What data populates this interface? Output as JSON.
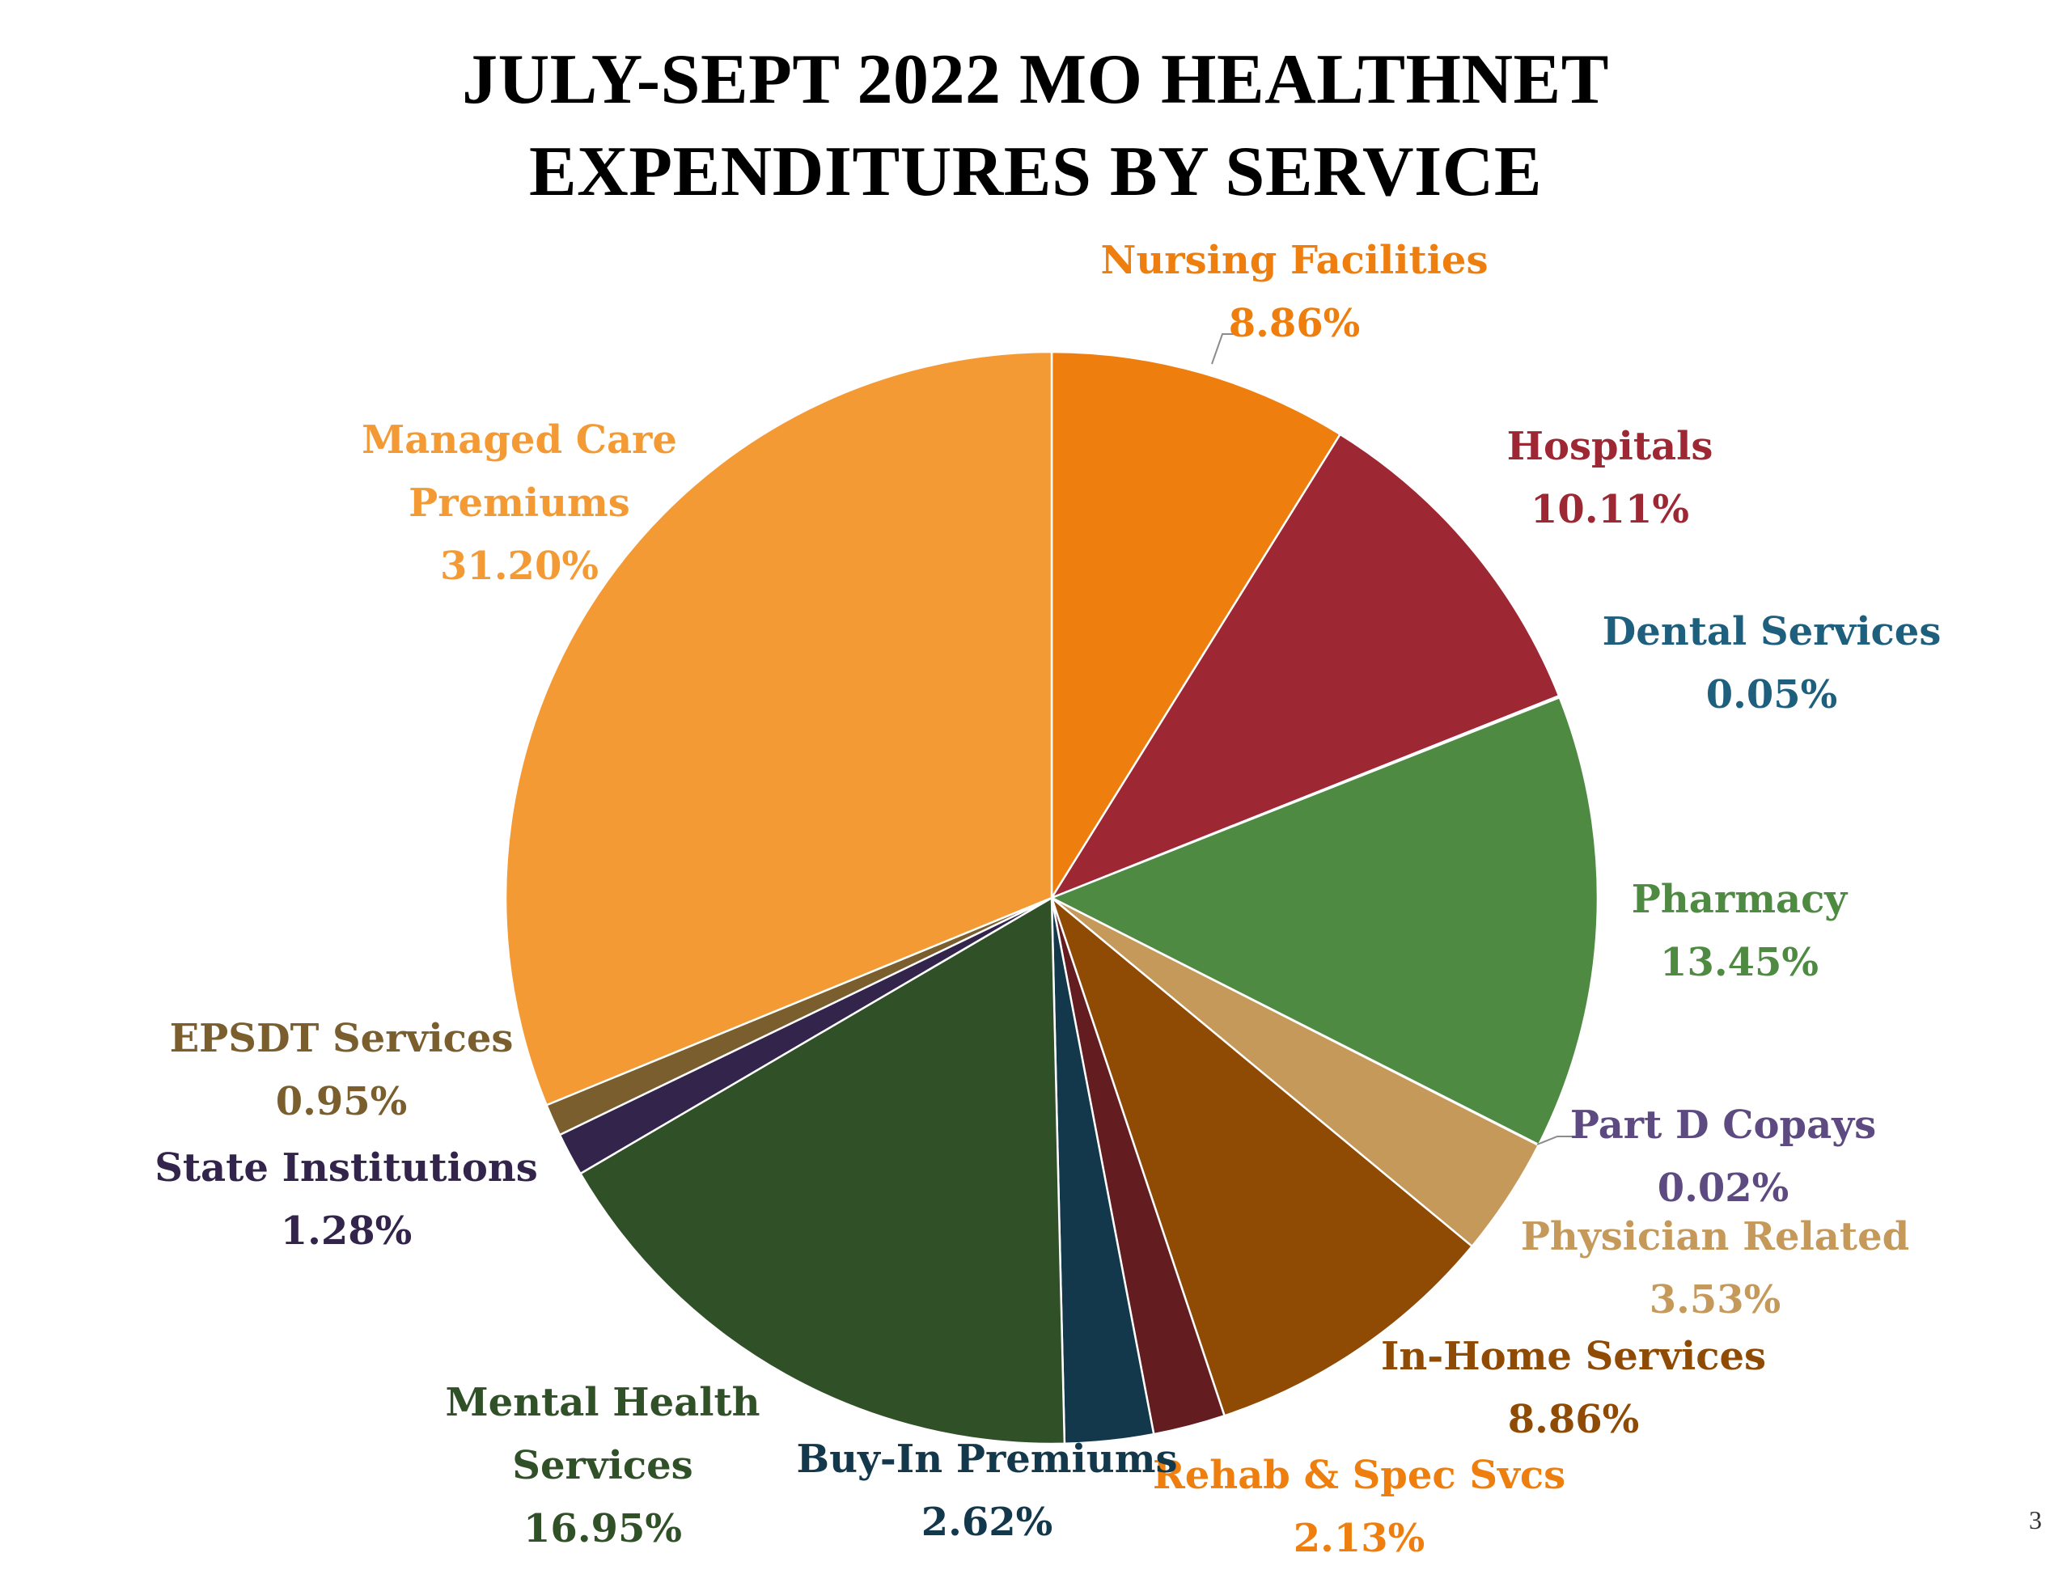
{
  "slide": {
    "page_number": "3"
  },
  "chart_data": {
    "type": "pie",
    "title": "JULY-SEPT 2022 MO HEALTHNET EXPENDITURES BY SERVICE",
    "title_lines": [
      "JULY-SEPT 2022 MO HEALTHNET",
      "EXPENDITURES BY SERVICE"
    ],
    "start": "12 o'clock",
    "direction": "clockwise",
    "legend": "none (data labels outside slices)",
    "slices": [
      {
        "name": "Nursing Facilities",
        "name_lines": [
          "Nursing Facilities"
        ],
        "value": 8.86,
        "label": "8.86%",
        "color": "#EE7F0E",
        "label_color": "#EE7F0E"
      },
      {
        "name": "Hospitals",
        "name_lines": [
          "Hospitals"
        ],
        "value": 10.11,
        "label": "10.11%",
        "color": "#9E2734",
        "label_color": "#9E2734"
      },
      {
        "name": "Dental Services",
        "name_lines": [
          "Dental Services"
        ],
        "value": 0.05,
        "label": "0.05%",
        "color": "#1E5F7E",
        "label_color": "#1E5F7E"
      },
      {
        "name": "Pharmacy",
        "name_lines": [
          "Pharmacy"
        ],
        "value": 13.45,
        "label": "13.45%",
        "color": "#4F8A43",
        "label_color": "#4F8A43"
      },
      {
        "name": "Part D Copays",
        "name_lines": [
          "Part D Copays"
        ],
        "value": 0.02,
        "label": "0.02%",
        "color": "#5C4A80",
        "label_color": "#5C4A80"
      },
      {
        "name": "Physician Related",
        "name_lines": [
          "Physician Related"
        ],
        "value": 3.53,
        "label": "3.53%",
        "color": "#C4995A",
        "label_color": "#C4995A"
      },
      {
        "name": "In-Home Services",
        "name_lines": [
          "In-Home Services"
        ],
        "value": 8.86,
        "label": "8.86%",
        "color": "#8F4A04",
        "label_color": "#8F4A04"
      },
      {
        "name": "Rehab & Spec Svcs",
        "name_lines": [
          "Rehab & Spec Svcs"
        ],
        "value": 2.13,
        "label": "2.13%",
        "color": "#631C20",
        "label_color": "#EE7F0E"
      },
      {
        "name": "Buy-In Premiums",
        "name_lines": [
          "Buy-In Premiums"
        ],
        "value": 2.62,
        "label": "2.62%",
        "color": "#13384B",
        "label_color": "#13384B"
      },
      {
        "name": "Mental Health Services",
        "name_lines": [
          "Mental Health",
          "Services"
        ],
        "value": 16.95,
        "label": "16.95%",
        "color": "#305127",
        "label_color": "#305127"
      },
      {
        "name": "State Institutions",
        "name_lines": [
          "State Institutions"
        ],
        "value": 1.28,
        "label": "1.28%",
        "color": "#32244A",
        "label_color": "#32244A"
      },
      {
        "name": "EPSDT Services",
        "name_lines": [
          "EPSDT Services"
        ],
        "value": 0.95,
        "label": "0.95%",
        "color": "#7A5E2E",
        "label_color": "#7A5E2E"
      },
      {
        "name": "Managed Care Premiums",
        "name_lines": [
          "Managed Care",
          "Premiums"
        ],
        "value": 31.2,
        "label": "31.20%",
        "color": "#F49A35",
        "label_color": "#F49A35"
      }
    ]
  }
}
